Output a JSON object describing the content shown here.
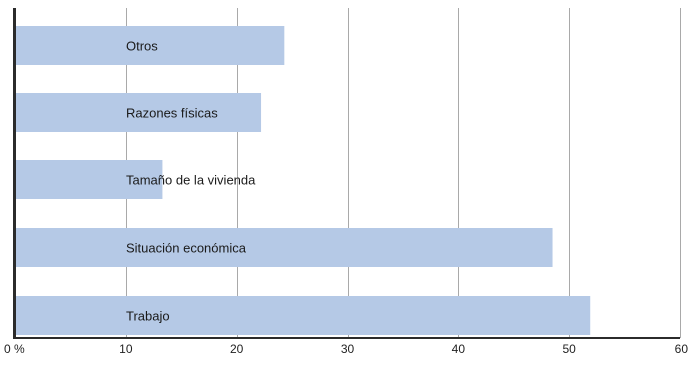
{
  "chart_data": {
    "type": "bar",
    "orientation": "horizontal",
    "categories": [
      "Otros",
      "Razones físicas",
      "Tamaño de la vivienda",
      "Situación económica",
      "Trabajo"
    ],
    "values": [
      24.3,
      22.2,
      13.3,
      48.5,
      51.9
    ],
    "x_ticks": [
      "0 %",
      "10",
      "20",
      "30",
      "40",
      "50",
      "60"
    ],
    "xlim": [
      0,
      60
    ],
    "grid": true,
    "legend": "none",
    "title": "",
    "xlabel": "",
    "ylabel": "",
    "colors": {
      "bar": "#b5c9e6",
      "axis": "#2b2b2b",
      "grid": "#a9a9a9"
    }
  }
}
